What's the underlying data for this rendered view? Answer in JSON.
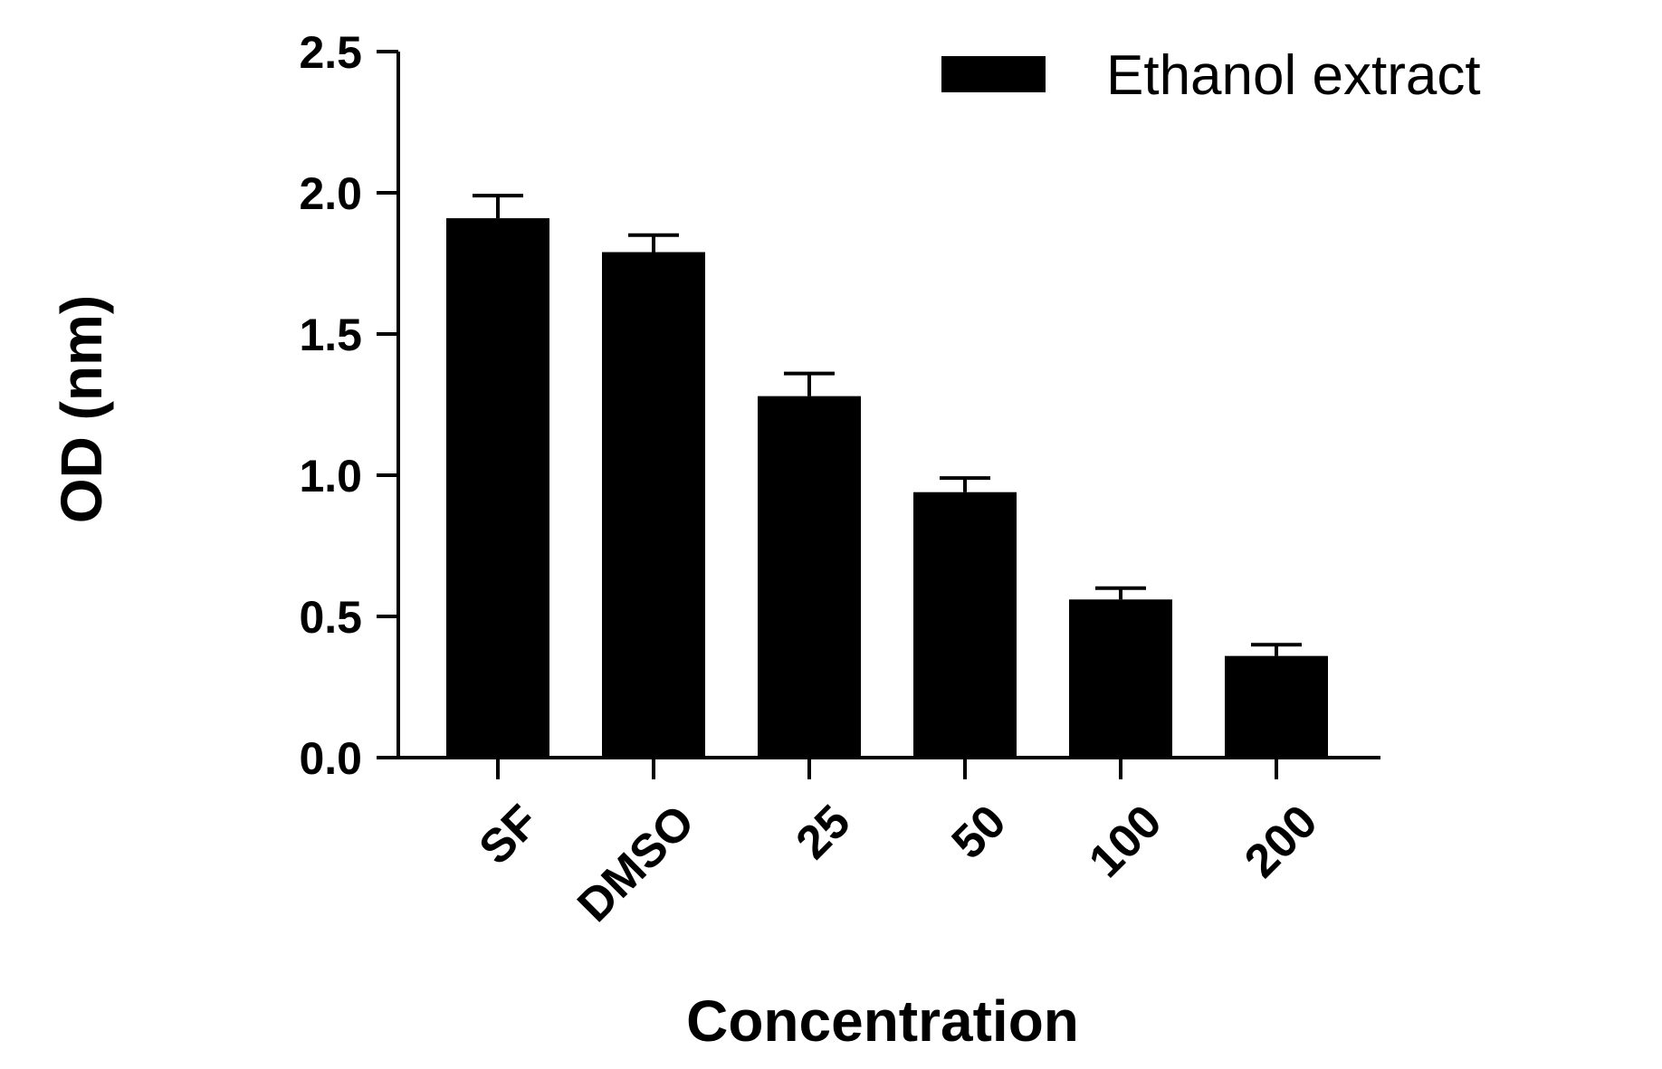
{
  "chart_data": {
    "type": "bar",
    "title": "",
    "xlabel": "Concentration",
    "ylabel": "OD (nm)",
    "ylim": [
      0,
      2.5
    ],
    "yticks": [
      "0.0",
      "0.5",
      "1.0",
      "1.5",
      "2.0",
      "2.5"
    ],
    "categories": [
      "SF",
      "DMSO",
      "25",
      "50",
      "100",
      "200"
    ],
    "series": [
      {
        "name": "Ethanol extract",
        "values": [
          1.91,
          1.79,
          1.28,
          0.94,
          0.56,
          0.36
        ],
        "errors": [
          0.08,
          0.06,
          0.08,
          0.05,
          0.04,
          0.04
        ],
        "color": "#000000"
      }
    ],
    "legend": "top-right",
    "grid": false
  }
}
